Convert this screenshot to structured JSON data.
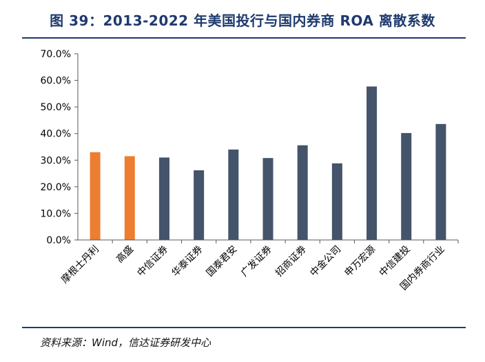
{
  "header": {
    "title": "图 39：2013-2022 年美国投行与国内券商 ROA 离散系数"
  },
  "footer": {
    "source": "资料来源：Wind，信达证券研发中心"
  },
  "chart_data": {
    "type": "bar",
    "title": "图 39：2013-2022 年美国投行与国内券商 ROA 离散系数",
    "xlabel": "",
    "ylabel": "",
    "categories": [
      "摩根士丹利",
      "高盛",
      "中信证券",
      "华泰证券",
      "国泰君安",
      "广发证券",
      "招商证券",
      "中金公司",
      "申万宏源",
      "中信建投",
      "国内券商行业"
    ],
    "values": [
      33.0,
      31.5,
      31.0,
      26.2,
      34.0,
      30.8,
      35.6,
      28.8,
      57.7,
      40.2,
      43.6
    ],
    "colors": [
      "#ed7d31",
      "#ed7d31",
      "#44546a",
      "#44546a",
      "#44546a",
      "#44546a",
      "#44546a",
      "#44546a",
      "#44546a",
      "#44546a",
      "#44546a"
    ],
    "ylim": [
      0,
      70
    ],
    "yticks": [
      "0.0%",
      "10.0%",
      "20.0%",
      "30.0%",
      "40.0%",
      "50.0%",
      "60.0%",
      "70.0%"
    ],
    "grid": false,
    "legend": "none"
  }
}
